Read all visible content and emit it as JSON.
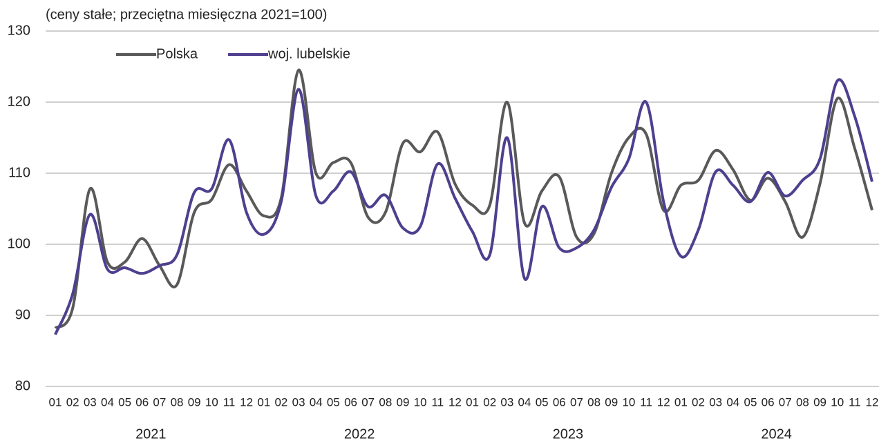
{
  "chart_data": {
    "type": "line",
    "subtitle": "(ceny stałe; przeciętna miesięczna 2021=100)",
    "categories": [
      "01",
      "02",
      "03",
      "04",
      "05",
      "06",
      "07",
      "08",
      "09",
      "10",
      "11",
      "12",
      "01",
      "02",
      "03",
      "04",
      "05",
      "06",
      "07",
      "08",
      "09",
      "10",
      "11",
      "12",
      "01",
      "02",
      "03",
      "04",
      "05",
      "06",
      "07",
      "08",
      "09",
      "10",
      "11",
      "12",
      "01",
      "02",
      "03",
      "04",
      "05",
      "06",
      "07",
      "08",
      "09",
      "10",
      "11",
      "12"
    ],
    "years": [
      "2021",
      "2022",
      "2023",
      "2024"
    ],
    "series": [
      {
        "name": "Polska",
        "color": "#595959",
        "values": [
          88.2,
          91,
          107.8,
          97.5,
          97.5,
          100.8,
          97,
          94.3,
          104.5,
          106.3,
          111.2,
          107.5,
          104,
          106.5,
          124.5,
          110,
          111.5,
          111.5,
          103.8,
          104.5,
          114.2,
          113,
          115.8,
          108.5,
          105.5,
          105.5,
          120,
          103,
          107.5,
          109.5,
          101,
          101.5,
          110,
          115,
          115.5,
          104.8,
          108.3,
          109,
          113.2,
          110.5,
          106.2,
          109.3,
          106,
          101,
          108.5,
          120.5,
          113.5,
          104.8
        ]
      },
      {
        "name": "woj. lubelskie",
        "color": "#4f3f8f",
        "values": [
          87.3,
          93,
          104.2,
          96.5,
          96.7,
          95.9,
          97,
          98.5,
          107.3,
          107.8,
          114.7,
          104.5,
          101.4,
          106,
          121.8,
          106.8,
          107.5,
          110.2,
          105.3,
          106.9,
          102.3,
          102.5,
          111.3,
          106.5,
          101.8,
          98.5,
          115,
          95.2,
          105.3,
          99.5,
          99.5,
          102,
          108,
          112,
          120,
          106,
          98.3,
          102,
          110.2,
          108.3,
          106,
          110.1,
          106.8,
          109,
          112,
          123,
          118,
          108.8
        ]
      }
    ],
    "ylim": [
      80,
      130
    ],
    "yticks": [
      80,
      90,
      100,
      110,
      120,
      130
    ],
    "grid": true,
    "legend": "top-left"
  }
}
